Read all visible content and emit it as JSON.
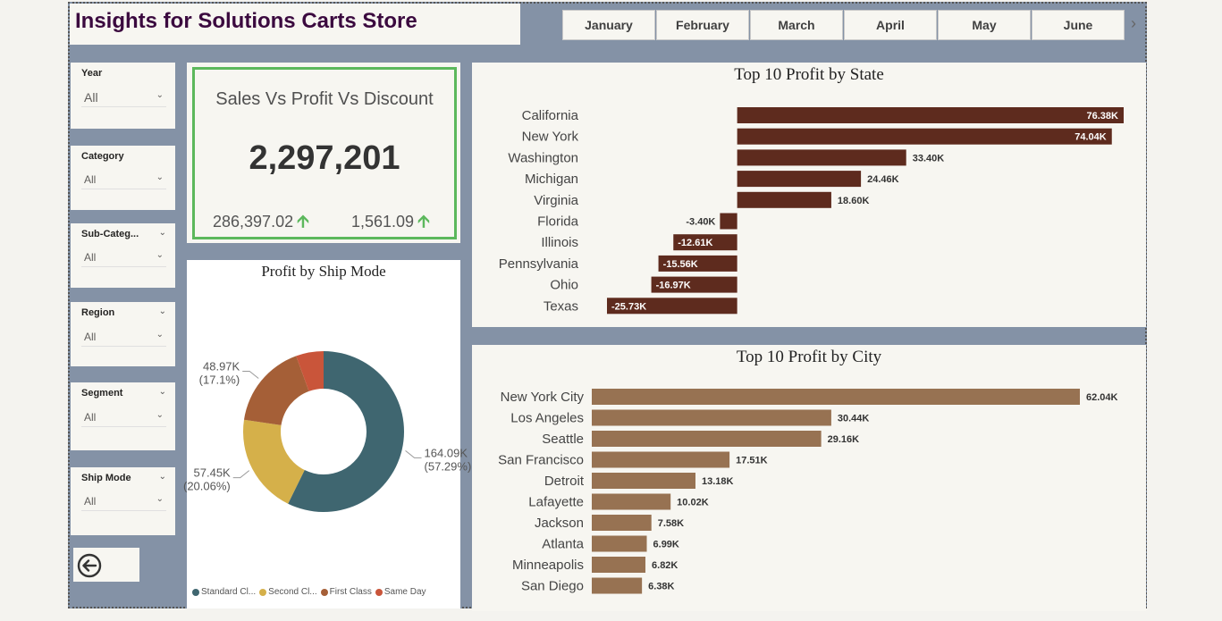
{
  "header": {
    "title": "Insights for Solutions Carts Store"
  },
  "months": [
    "January",
    "February",
    "March",
    "April",
    "May",
    "June"
  ],
  "month_next_icon": "chevron-right-icon",
  "slicers": [
    {
      "id": "year",
      "label": "Year",
      "value": "All",
      "has_header_chevron": false
    },
    {
      "id": "category",
      "label": "Category",
      "value": "All",
      "has_header_chevron": false
    },
    {
      "id": "sub-category",
      "label": "Sub-Categ...",
      "value": "All",
      "has_header_chevron": true
    },
    {
      "id": "region",
      "label": "Region",
      "value": "All",
      "has_header_chevron": true
    },
    {
      "id": "segment",
      "label": "Segment",
      "value": "All",
      "has_header_chevron": true
    },
    {
      "id": "ship-mode",
      "label": "Ship Mode",
      "value": "All",
      "has_header_chevron": true
    }
  ],
  "kpi": {
    "title": "Sales Vs Profit Vs Discount",
    "value": "2,297,201",
    "profit": "286,397.02",
    "discount": "1,561.09",
    "up_color": "#5cb85c"
  },
  "back_button": {
    "icon": "back-arrow-icon"
  },
  "chart_data": [
    {
      "type": "pie",
      "title": "Profit by Ship Mode",
      "donut": true,
      "slices": [
        {
          "name": "Standard Class",
          "legend_label": "Standard Cl...",
          "value": 164.09,
          "label": "164.09K",
          "pct": "(57.29%)",
          "color": "#3f6670"
        },
        {
          "name": "Second Class",
          "legend_label": "Second Cl...",
          "value": 57.45,
          "label": "57.45K",
          "pct": "(20.06%)",
          "color": "#d5b04a"
        },
        {
          "name": "First Class",
          "legend_label": "First Class",
          "value": 48.97,
          "label": "48.97K",
          "pct": "(17.1%)",
          "color": "#a55f37"
        },
        {
          "name": "Same Day",
          "legend_label": "Same Day",
          "value": 15.89,
          "label": "",
          "pct": "",
          "color": "#c9553a"
        }
      ]
    },
    {
      "type": "bar",
      "orientation": "horizontal",
      "title": "Top 10 Profit by State",
      "categories": [
        "California",
        "New York",
        "Washington",
        "Michigan",
        "Virginia",
        "Florida",
        "Illinois",
        "Pennsylvania",
        "Ohio",
        "Texas"
      ],
      "values": [
        76.38,
        74.04,
        33.4,
        24.46,
        18.6,
        -3.4,
        -12.61,
        -15.56,
        -16.97,
        -25.73
      ],
      "labels": [
        "76.38K",
        "74.04K",
        "33.40K",
        "24.46K",
        "18.60K",
        "-3.40K",
        "-12.61K",
        "-15.56K",
        "-16.97K",
        "-25.73K"
      ],
      "color": "#5e2b1e",
      "xlim": [
        -25.73,
        76.38
      ]
    },
    {
      "type": "bar",
      "orientation": "horizontal",
      "title": "Top 10 Profit by City",
      "categories": [
        "New York City",
        "Los Angeles",
        "Seattle",
        "San Francisco",
        "Detroit",
        "Lafayette",
        "Jackson",
        "Atlanta",
        "Minneapolis",
        "San Diego"
      ],
      "values": [
        62.04,
        30.44,
        29.16,
        17.51,
        13.18,
        10.02,
        7.58,
        6.99,
        6.82,
        6.38
      ],
      "labels": [
        "62.04K",
        "30.44K",
        "29.16K",
        "17.51K",
        "13.18K",
        "10.02K",
        "7.58K",
        "6.99K",
        "6.82K",
        "6.38K"
      ],
      "color": "#977252",
      "xlim": [
        0,
        62.04
      ]
    }
  ]
}
